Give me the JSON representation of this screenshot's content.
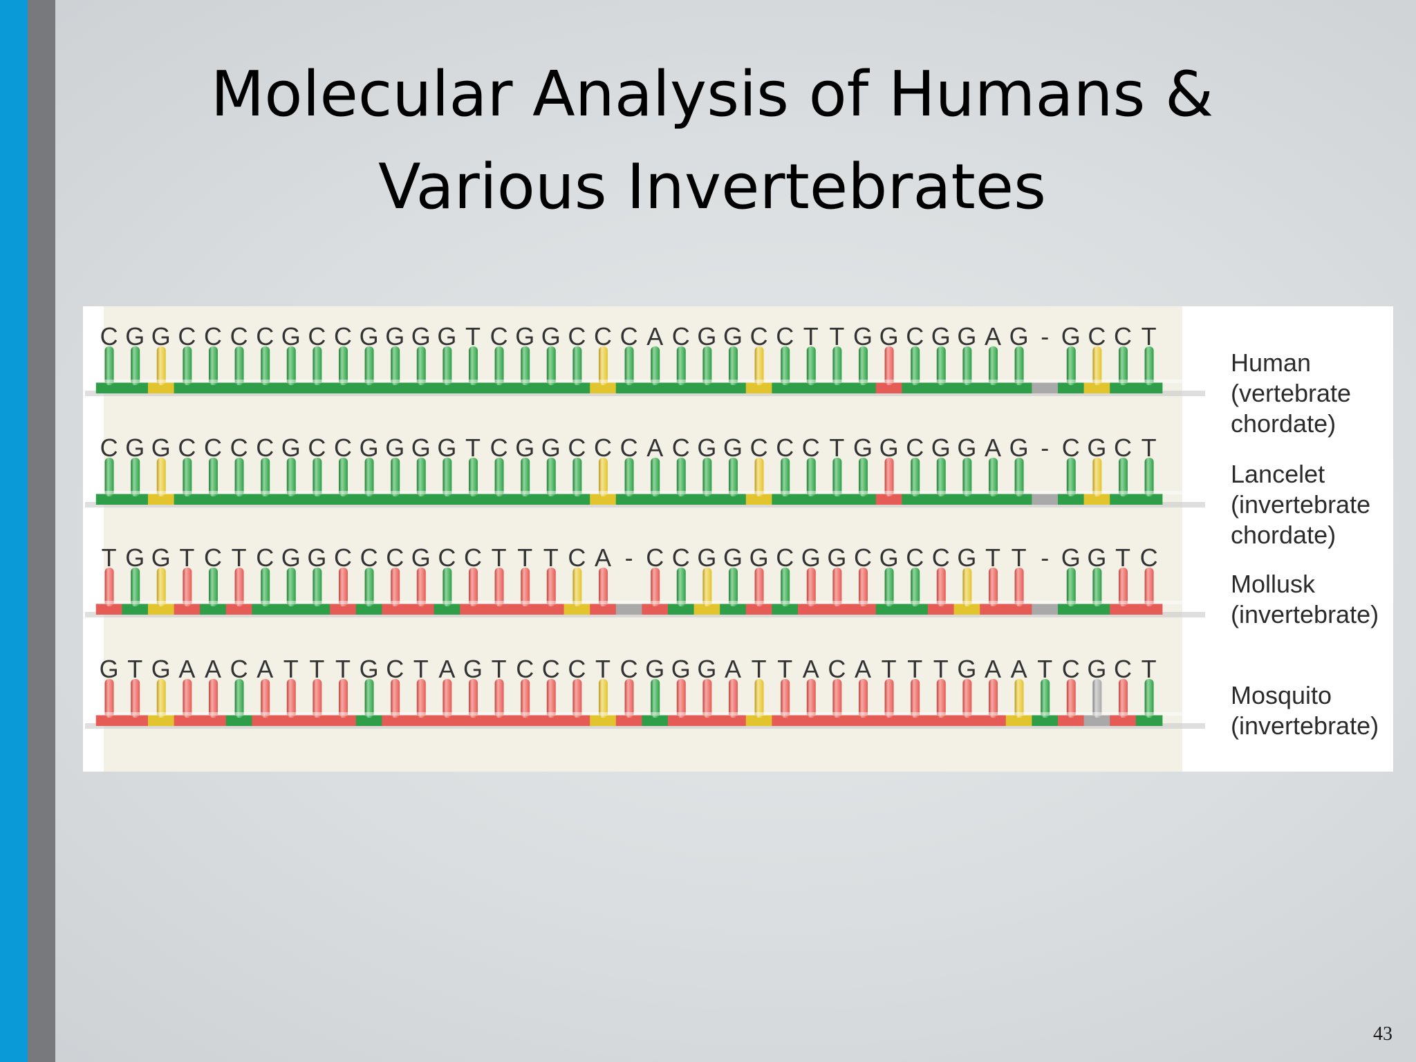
{
  "slide": {
    "title_line1": "Molecular Analysis of Humans &",
    "title_line2": "Various Invertebrates",
    "page_number": "43"
  },
  "colors": {
    "accent_blue": "#0b9ad8",
    "accent_gray": "#77797c",
    "panel_beige": "#f3f1e6",
    "same_as_human_green": "#2e9e48",
    "different_red": "#e55b55",
    "yellow_marker": "#e2c52e",
    "gap_gray": "#a9a9a9"
  },
  "alignment": {
    "rows": [
      {
        "sequence": "CGGCCCCGCCGGGGTCGGCCCACGGCCTTGGCGGAG-GCCT",
        "species": [
          "Human",
          "(vertebrate",
          "chordate)"
        ],
        "pegs": "GGYGGGGGGGGGGGGGGGGYGGGGGYGGGGRGGGGGGYGG-GRGG",
        "base": "GGYGGGGGGGGGGGGGGGGYGGGGGYGGGGRGGGGGGYGG-GRGG"
      },
      {
        "sequence": "CGGCCCCGCCGGGGTCGGCCCACGGCCCTGGCGGAG-CGCT",
        "species": [
          "Lancelet",
          "(invertebrate",
          "chordate)"
        ],
        "pegs": "GGYGGGGGGGGGGGGGGGGYGGGGGYGGGGRGGGGGGYGG-RGGG",
        "base": "GGYGGGGGGGGGGGGGGGGYGGGGGYGGGGRGGGGGGYGG-RGGG"
      },
      {
        "sequence": "TGGTCTCGGCCCGCCTTTCA-CCGGGCGGCGCCGTT-GGTC",
        "species": [
          "Mollusk",
          "(invertebrate)"
        ],
        "pegs": "RGYRGRGGGRGRRGRRRRYR-RGYGRGRRRGGRYRR-GGRR",
        "base": "RGYRGRGGGRGRRGRRRRYR-RGYGRGRRRGGRYRR-GGRR"
      },
      {
        "sequence": "GTGAACATTTGCTAGTCCCTCGGGATTACATTTGAATCGCT",
        "species": [
          "Mosquito",
          "(invertebrate)"
        ],
        "pegs": "RRYRRGRRRRGRRRRRRRRYRGRRRYRRRRRRRRRYGRXRGGG",
        "base": "RRYRRGRRRRGRRRRRRRRYRGRRRYRRRRRRRRRYGRXRGGG"
      }
    ]
  }
}
